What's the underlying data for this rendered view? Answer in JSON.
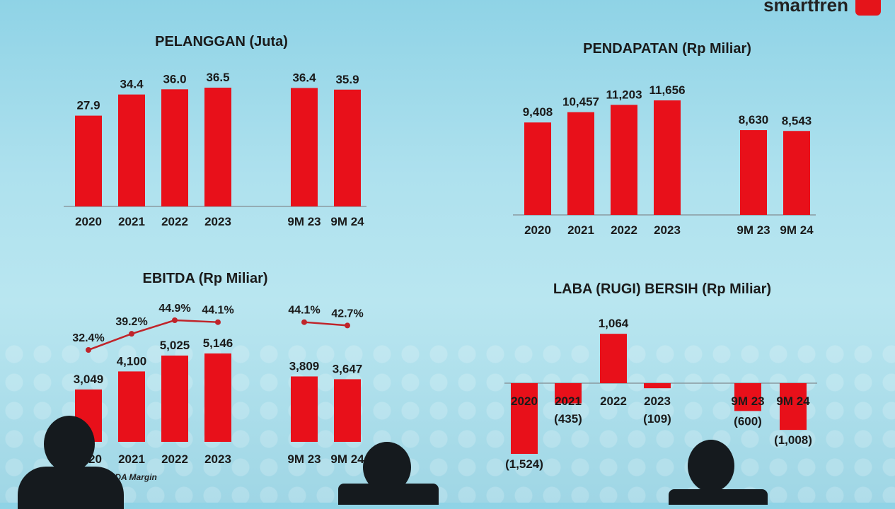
{
  "colors": {
    "bar": "#e8101a",
    "line": "#c0242a",
    "text": "#1a1a1a",
    "axis": "#8a9aa0"
  },
  "brand": {
    "text": "smartfren"
  },
  "charts": {
    "pelanggan": {
      "title": "PELANGGAN (Juta)",
      "chart_data": {
        "type": "bar",
        "title": "PELANGGAN (Juta)",
        "categories": [
          "2020",
          "2021",
          "2022",
          "2023",
          "9M 23",
          "9M 24"
        ],
        "values": [
          27.9,
          34.4,
          36.0,
          36.5,
          36.4,
          35.9
        ],
        "labels": [
          "27.9",
          "34.4",
          "36.0",
          "36.5",
          "36.4",
          "35.9"
        ],
        "ylim": [
          0,
          36.5
        ]
      }
    },
    "pendapatan": {
      "title": "PENDAPATAN (Rp Miliar)",
      "chart_data": {
        "type": "bar",
        "title": "PENDAPATAN (Rp Miliar)",
        "categories": [
          "2020",
          "2021",
          "2022",
          "2023",
          "9M 23",
          "9M 24"
        ],
        "values": [
          9408,
          10457,
          11203,
          11656,
          8630,
          8543
        ],
        "labels": [
          "9,408",
          "10,457",
          "11,203",
          "11,656",
          "8,630",
          "8,543"
        ],
        "ylim": [
          0,
          11656
        ]
      }
    },
    "ebitda": {
      "title": "EBITDA (Rp Miliar)",
      "legend": "EBITDA Margin",
      "chart_data": {
        "type": "bar",
        "title": "EBITDA (Rp Miliar)",
        "categories": [
          "2020",
          "2021",
          "2022",
          "2023",
          "9M 23",
          "9M 24"
        ],
        "values": [
          3049,
          4100,
          5025,
          5146,
          3809,
          3647
        ],
        "labels": [
          "3,049",
          "4,100",
          "5,025",
          "5,146",
          "3,809",
          "3,647"
        ],
        "margin": [
          32.4,
          39.2,
          44.9,
          44.1,
          44.1,
          42.7
        ],
        "margin_labels": [
          "32.4%",
          "39.2%",
          "44.9%",
          "44.1%",
          "44.1%",
          "42.7%"
        ],
        "ylim": [
          0,
          5146
        ]
      }
    },
    "laba": {
      "title": "LABA (RUGI) BERSIH (Rp Miliar)",
      "chart_data": {
        "type": "bar",
        "title": "LABA (RUGI) BERSIH (Rp Miliar)",
        "categories": [
          "2020",
          "2021",
          "2022",
          "2023",
          "9M 23",
          "9M 24"
        ],
        "values": [
          -1524,
          -435,
          1064,
          -109,
          -600,
          -1008
        ],
        "labels": [
          "(1,524)",
          "(435)",
          "1,064",
          "(109)",
          "(600)",
          "(1,008)"
        ],
        "ylim": [
          -1524,
          1064
        ]
      }
    }
  }
}
